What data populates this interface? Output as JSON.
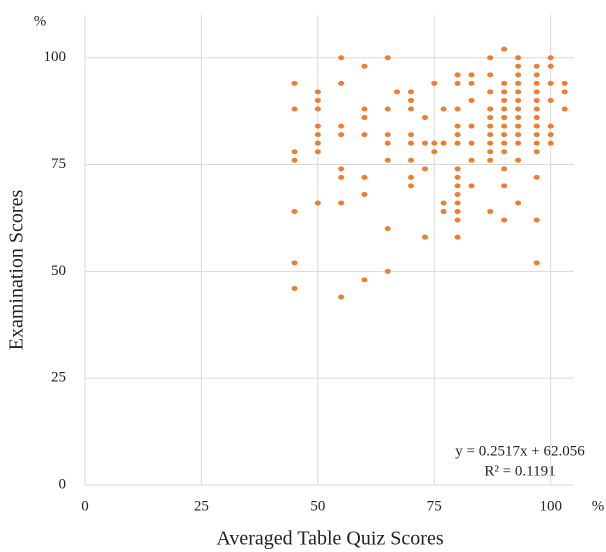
{
  "chart_data": {
    "type": "scatter",
    "x_label": "Averaged Table Quiz Scores",
    "y_label": "Examination Scores",
    "x_unit": "%",
    "y_unit": "%",
    "annotations": [
      "y = 0.2517x + 62.056",
      "R² = 0.1191"
    ],
    "color": "#ed7d31",
    "grid": true,
    "xlim": [
      0,
      105
    ],
    "xticks": [
      0,
      25,
      50,
      75,
      100
    ],
    "ylim": [
      0,
      110
    ],
    "yticks": [
      0,
      25,
      50,
      75,
      100
    ],
    "x": [
      45,
      45,
      45,
      45,
      45,
      45,
      45,
      50,
      50,
      50,
      50,
      50,
      50,
      50,
      50,
      55,
      55,
      55,
      55,
      55,
      55,
      55,
      55,
      60,
      60,
      60,
      60,
      60,
      60,
      60,
      65,
      65,
      65,
      65,
      65,
      65,
      65,
      67,
      70,
      70,
      70,
      70,
      70,
      70,
      70,
      70,
      73,
      73,
      73,
      73,
      75,
      75,
      75,
      77,
      77,
      77,
      77,
      80,
      80,
      80,
      80,
      80,
      80,
      80,
      80,
      80,
      80,
      80,
      80,
      80,
      80,
      83,
      83,
      83,
      83,
      83,
      83,
      83,
      87,
      87,
      87,
      87,
      87,
      87,
      87,
      87,
      87,
      87,
      87,
      90,
      90,
      90,
      90,
      90,
      90,
      90,
      90,
      90,
      90,
      90,
      90,
      90,
      93,
      93,
      93,
      93,
      93,
      93,
      93,
      93,
      93,
      93,
      93,
      93,
      93,
      97,
      97,
      97,
      97,
      97,
      97,
      97,
      97,
      97,
      97,
      97,
      97,
      97,
      97,
      100,
      100,
      100,
      100,
      100,
      100,
      100,
      103,
      103,
      103
    ],
    "values": [
      94,
      88,
      78,
      76,
      64,
      52,
      46,
      92,
      90,
      88,
      84,
      82,
      80,
      78,
      66,
      100,
      94,
      84,
      82,
      74,
      72,
      66,
      44,
      98,
      88,
      86,
      82,
      72,
      68,
      48,
      100,
      88,
      82,
      80,
      76,
      60,
      50,
      92,
      92,
      90,
      88,
      82,
      80,
      76,
      72,
      70,
      86,
      80,
      74,
      58,
      94,
      80,
      78,
      88,
      80,
      66,
      64,
      96,
      94,
      88,
      84,
      82,
      80,
      74,
      72,
      70,
      68,
      66,
      64,
      62,
      58,
      96,
      94,
      90,
      84,
      80,
      76,
      70,
      100,
      96,
      92,
      88,
      86,
      84,
      82,
      80,
      78,
      76,
      64,
      102,
      94,
      92,
      90,
      88,
      86,
      84,
      82,
      80,
      78,
      74,
      70,
      62,
      100,
      98,
      96,
      94,
      92,
      90,
      88,
      86,
      84,
      82,
      80,
      76,
      66,
      98,
      96,
      94,
      92,
      90,
      88,
      86,
      84,
      82,
      80,
      78,
      72,
      62,
      52,
      100,
      98,
      94,
      90,
      84,
      82,
      80,
      94,
      92,
      88
    ]
  }
}
